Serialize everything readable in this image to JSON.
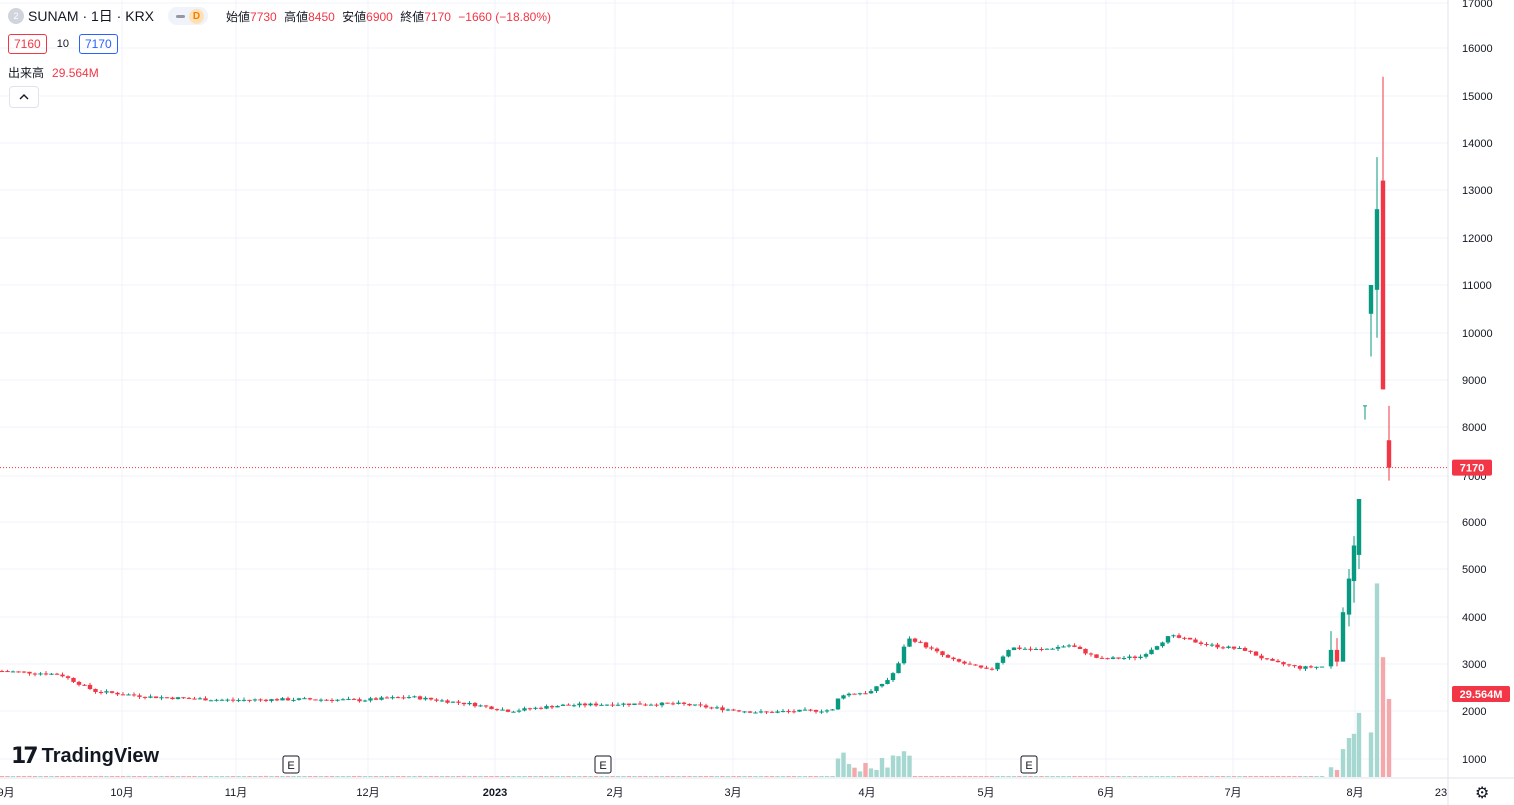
{
  "header": {
    "symbol_icon": "2",
    "title": "SUNAM · 1日 · KRX",
    "toggle_letter": "D",
    "open_label": "始値",
    "open_value": "7730",
    "high_label": "高値",
    "high_value": "8450",
    "low_label": "安値",
    "low_value": "6900",
    "close_label": "終値",
    "close_value": "7170",
    "change": "−1660 (−18.80%)",
    "bid": "7160",
    "spread": "10",
    "ask": "7170",
    "volume_label": "出来高",
    "volume_value": "29.564M",
    "collapse_icon": "chevron-up-icon"
  },
  "logo_text": "TradingView",
  "colors": {
    "up": "#089981",
    "down": "#f23645",
    "up_vol": "#a6d7d0",
    "down_vol": "#f4a8ac",
    "last_price": "#f23645"
  },
  "chart_data": {
    "type": "candlestick",
    "y_axis": {
      "ticks": [
        "17000",
        "16000",
        "15000",
        "14000",
        "13000",
        "12000",
        "11000",
        "10000",
        "9000",
        "8000",
        "7000",
        "6000",
        "5000",
        "4000",
        "3000",
        "2000",
        "1000"
      ],
      "ylim": [
        1000,
        17000
      ],
      "scale": "nonuniform"
    },
    "x_axis": {
      "tick_labels": [
        "9月",
        "10月",
        "11月",
        "12月",
        "2023",
        "2月",
        "3月",
        "4月",
        "5月",
        "6月",
        "7月",
        "8月",
        "23"
      ]
    },
    "last_price_label": "7170",
    "last_volume_label": "29.564M",
    "events": [
      "E",
      "E",
      "E"
    ],
    "segments": [
      {
        "from": "2022-09",
        "to": "2023-03",
        "price_range": [
          1950,
          2850
        ],
        "volume": "low"
      },
      {
        "from": "2023-03",
        "to": "2023-07",
        "price_range": [
          2800,
          3700
        ],
        "volume": "low"
      },
      {
        "from": "2023-08",
        "to": "2023-08",
        "price_range": [
          3700,
          15400
        ],
        "volume": "high"
      }
    ],
    "last_candle": {
      "open": 7730,
      "high": 8450,
      "low": 6900,
      "close": 7170
    }
  }
}
